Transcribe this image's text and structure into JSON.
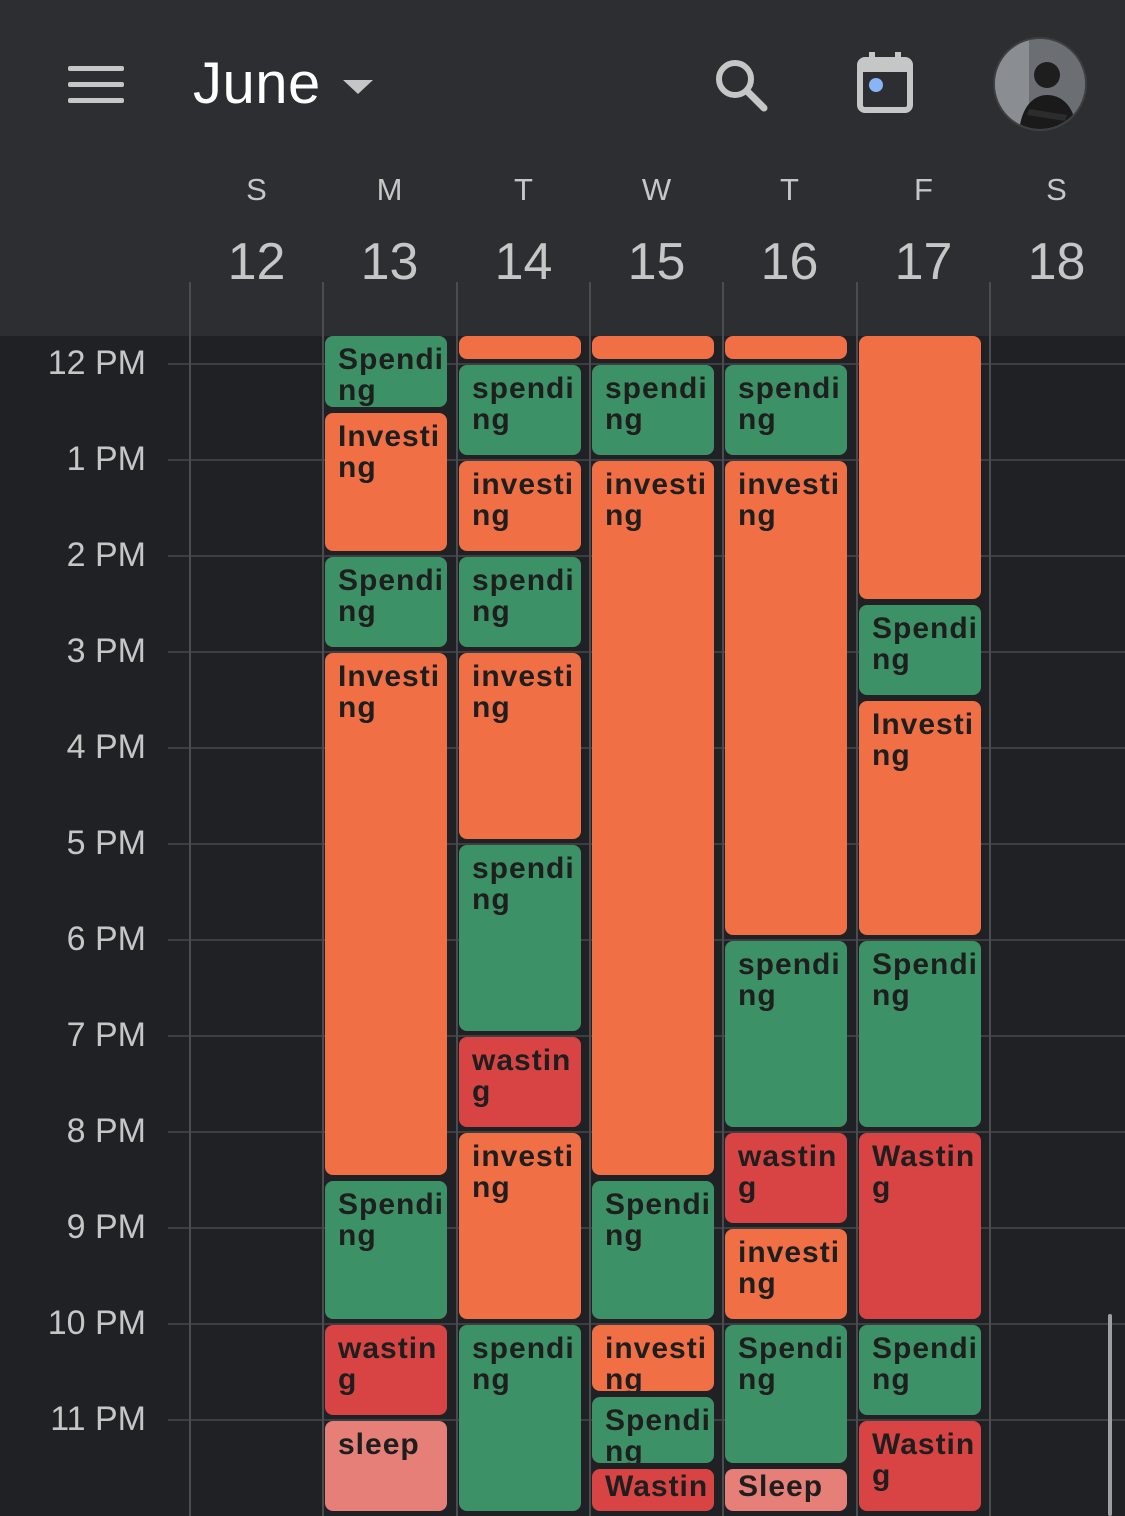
{
  "header": {
    "month": "June",
    "menu_icon": "hamburger-menu-icon",
    "search_icon": "search-icon",
    "today_icon": "calendar-today-icon",
    "avatar": "profile-avatar"
  },
  "week": [
    {
      "dow": "S",
      "date": "12"
    },
    {
      "dow": "M",
      "date": "13"
    },
    {
      "dow": "T",
      "date": "14"
    },
    {
      "dow": "W",
      "date": "15"
    },
    {
      "dow": "T",
      "date": "16"
    },
    {
      "dow": "F",
      "date": "17"
    },
    {
      "dow": "S",
      "date": "18"
    }
  ],
  "time_labels": [
    "12 PM",
    "1 PM",
    "2 PM",
    "3 PM",
    "4 PM",
    "5 PM",
    "6 PM",
    "7 PM",
    "8 PM",
    "9 PM",
    "10 PM",
    "11 PM"
  ],
  "colors": {
    "spending": "#3c9166",
    "investing": "#f06f45",
    "wasting": "#d84444",
    "sleep": "#e57f78",
    "background": "#202124",
    "header": "#2d2e31"
  },
  "events": [
    {
      "day": 1,
      "title": "Spending",
      "category": "spending",
      "start": "11:30 AM",
      "end": "12:30 PM"
    },
    {
      "day": 1,
      "title": "Investing",
      "category": "investing",
      "start": "12:30 PM",
      "end": "2:00 PM"
    },
    {
      "day": 1,
      "title": "Spending",
      "category": "spending",
      "start": "2:00 PM",
      "end": "3:00 PM"
    },
    {
      "day": 1,
      "title": "Investing",
      "category": "investing",
      "start": "3:00 PM",
      "end": "8:30 PM"
    },
    {
      "day": 1,
      "title": "Spending",
      "category": "spending",
      "start": "8:30 PM",
      "end": "10:00 PM"
    },
    {
      "day": 1,
      "title": "wasting",
      "category": "wasting",
      "start": "10:00 PM",
      "end": "11:00 PM"
    },
    {
      "day": 1,
      "title": "sleep",
      "category": "sleep",
      "start": "11:00 PM",
      "end": "12:00 AM"
    },
    {
      "day": 2,
      "title": "",
      "category": "investing",
      "start": "11:30 AM",
      "end": "12:00 PM"
    },
    {
      "day": 2,
      "title": "spending",
      "category": "spending",
      "start": "12:00 PM",
      "end": "1:00 PM"
    },
    {
      "day": 2,
      "title": "investing",
      "category": "investing",
      "start": "1:00 PM",
      "end": "2:00 PM"
    },
    {
      "day": 2,
      "title": "spending",
      "category": "spending",
      "start": "2:00 PM",
      "end": "3:00 PM"
    },
    {
      "day": 2,
      "title": "investing",
      "category": "investing",
      "start": "3:00 PM",
      "end": "5:00 PM"
    },
    {
      "day": 2,
      "title": "spending",
      "category": "spending",
      "start": "5:00 PM",
      "end": "7:00 PM"
    },
    {
      "day": 2,
      "title": "wasting",
      "category": "wasting",
      "start": "7:00 PM",
      "end": "8:00 PM"
    },
    {
      "day": 2,
      "title": "investing",
      "category": "investing",
      "start": "8:00 PM",
      "end": "10:00 PM"
    },
    {
      "day": 2,
      "title": "spending",
      "category": "spending",
      "start": "10:00 PM",
      "end": "12:00 AM"
    },
    {
      "day": 3,
      "title": "",
      "category": "investing",
      "start": "11:30 AM",
      "end": "12:00 PM"
    },
    {
      "day": 3,
      "title": "spending",
      "category": "spending",
      "start": "12:00 PM",
      "end": "1:00 PM"
    },
    {
      "day": 3,
      "title": "investing",
      "category": "investing",
      "start": "1:00 PM",
      "end": "8:30 PM"
    },
    {
      "day": 3,
      "title": "Spending",
      "category": "spending",
      "start": "8:30 PM",
      "end": "10:00 PM"
    },
    {
      "day": 3,
      "title": "investing",
      "category": "investing",
      "start": "10:00 PM",
      "end": "10:45 PM"
    },
    {
      "day": 3,
      "title": "Spending",
      "category": "spending",
      "start": "10:45 PM",
      "end": "11:30 PM"
    },
    {
      "day": 3,
      "title": "Wasting",
      "category": "wasting",
      "start": "11:30 PM",
      "end": "12:00 AM"
    },
    {
      "day": 4,
      "title": "",
      "category": "investing",
      "start": "11:30 AM",
      "end": "12:00 PM"
    },
    {
      "day": 4,
      "title": "spending",
      "category": "spending",
      "start": "12:00 PM",
      "end": "1:00 PM"
    },
    {
      "day": 4,
      "title": "investing",
      "category": "investing",
      "start": "1:00 PM",
      "end": "6:00 PM"
    },
    {
      "day": 4,
      "title": "spending",
      "category": "spending",
      "start": "6:00 PM",
      "end": "8:00 PM"
    },
    {
      "day": 4,
      "title": "wasting",
      "category": "wasting",
      "start": "8:00 PM",
      "end": "9:00 PM"
    },
    {
      "day": 4,
      "title": "investing",
      "category": "investing",
      "start": "9:00 PM",
      "end": "10:00 PM"
    },
    {
      "day": 4,
      "title": "Spending",
      "category": "spending",
      "start": "10:00 PM",
      "end": "11:30 PM"
    },
    {
      "day": 4,
      "title": "Sleep",
      "category": "sleep",
      "start": "11:30 PM",
      "end": "12:00 AM"
    },
    {
      "day": 5,
      "title": "",
      "category": "investing",
      "start": "11:30 AM",
      "end": "2:30 PM"
    },
    {
      "day": 5,
      "title": "Spending",
      "category": "spending",
      "start": "2:30 PM",
      "end": "3:30 PM"
    },
    {
      "day": 5,
      "title": "Investing",
      "category": "investing",
      "start": "3:30 PM",
      "end": "6:00 PM"
    },
    {
      "day": 5,
      "title": "Spending",
      "category": "spending",
      "start": "6:00 PM",
      "end": "8:00 PM"
    },
    {
      "day": 5,
      "title": "Wasting",
      "category": "wasting",
      "start": "8:00 PM",
      "end": "10:00 PM"
    },
    {
      "day": 5,
      "title": "Spending",
      "category": "spending",
      "start": "10:00 PM",
      "end": "11:00 PM"
    },
    {
      "day": 5,
      "title": "Wasting",
      "category": "wasting",
      "start": "11:00 PM",
      "end": "12:00 AM"
    }
  ]
}
